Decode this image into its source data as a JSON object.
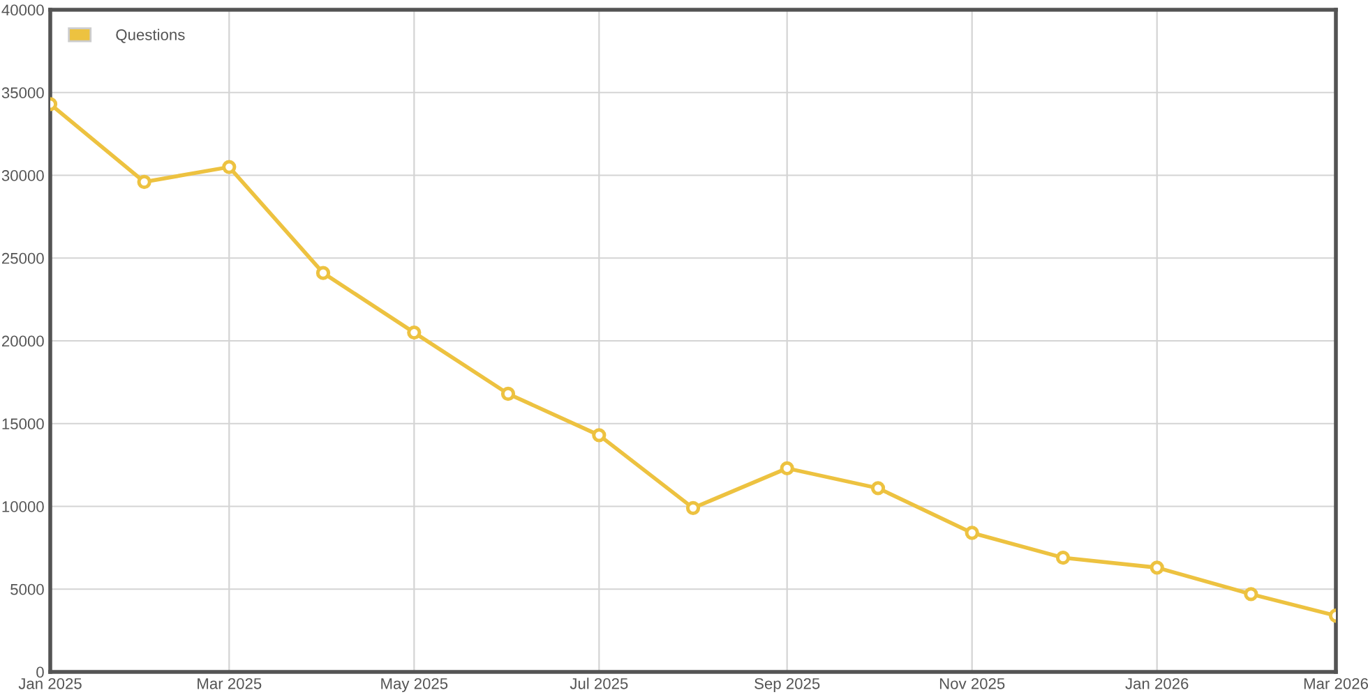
{
  "chart_data": {
    "type": "line",
    "x": [
      "2025-01",
      "2025-02",
      "2025-03",
      "2025-04",
      "2025-05",
      "2025-06",
      "2025-07",
      "2025-08",
      "2025-09",
      "2025-10",
      "2025-11",
      "2025-12",
      "2026-01",
      "2026-02",
      "2026-03"
    ],
    "series": [
      {
        "name": "Questions",
        "color": "#edc240",
        "values": [
          34300,
          29600,
          30500,
          24100,
          20500,
          16800,
          14300,
          9900,
          12300,
          11100,
          8400,
          6900,
          6300,
          4700,
          3400
        ]
      }
    ],
    "xlim": [
      "2025-01",
      "2026-03"
    ],
    "xticks": [
      {
        "value": "2025-01",
        "label": "Jan 2025"
      },
      {
        "value": "2025-03",
        "label": "Mar 2025"
      },
      {
        "value": "2025-05",
        "label": "May 2025"
      },
      {
        "value": "2025-07",
        "label": "Jul 2025"
      },
      {
        "value": "2025-09",
        "label": "Sep 2025"
      },
      {
        "value": "2025-11",
        "label": "Nov 2025"
      },
      {
        "value": "2026-01",
        "label": "Jan 2026"
      },
      {
        "value": "2026-03",
        "label": "Mar 2026"
      }
    ],
    "ylim": [
      0,
      40000
    ],
    "yticks": [
      0,
      5000,
      10000,
      15000,
      20000,
      25000,
      30000,
      35000,
      40000
    ],
    "grid": true,
    "legend": "top left",
    "marker": "circle",
    "line_style": "solid"
  }
}
